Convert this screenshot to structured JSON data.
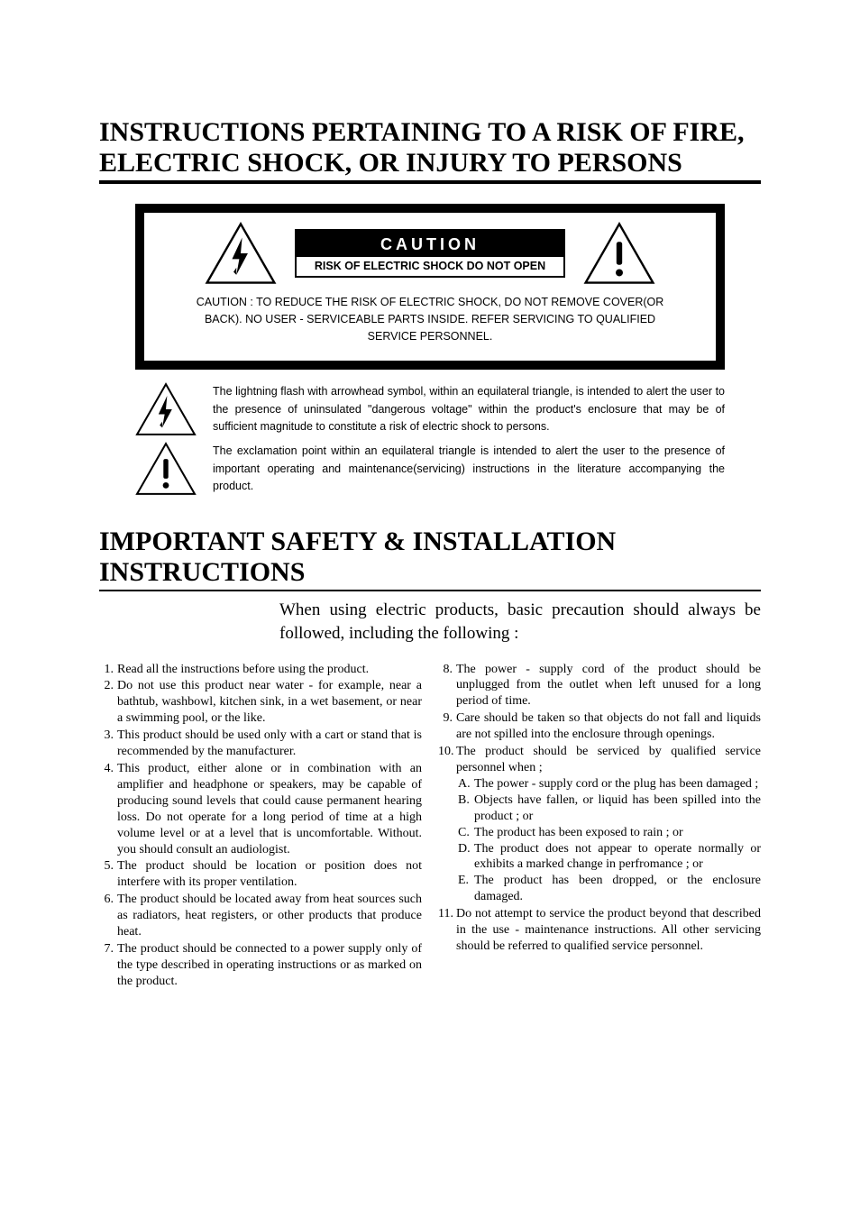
{
  "section1": {
    "title": "INSTRUCTIONS PERTAINING TO A RISK OF FIRE, ELECTRIC SHOCK, OR INJURY TO PERSONS",
    "caution_word": "CAUTION",
    "caution_sub": "RISK OF ELECTRIC SHOCK DO NOT OPEN",
    "caution_body": "CAUTION : TO REDUCE THE RISK OF ELECTRIC SHOCK, DO NOT REMOVE COVER(OR BACK). NO USER - SERVICEABLE PARTS INSIDE. REFER SERVICING TO QUALIFIED SERVICE PERSONNEL.",
    "explain_bolt": "The lightning flash with arrowhead symbol, within an equilateral triangle, is intended to alert the user to the presence of uninsulated \"dangerous voltage\" within the product's enclosure that may be of sufficient magnitude to constitute a risk of electric shock to persons.",
    "explain_excl": "The exclamation point within an equilateral triangle is intended to alert the user to the presence of important operating and maintenance(servicing) instructions in the literature accompanying the product."
  },
  "section2": {
    "title": "IMPORTANT SAFETY & INSTALLATION INSTRUCTIONS",
    "intro": "When using electric products, basic precaution should always be followed, including the following :",
    "left": [
      {
        "n": "1.",
        "t": "Read all the instructions before using the product."
      },
      {
        "n": "2.",
        "t": "Do not use this product near water - for example, near a bathtub, washbowl, kitchen sink, in a wet basement, or near a swimming pool, or the like."
      },
      {
        "n": "3.",
        "t": "This product should be used only with a cart or stand that is recommended by the manufacturer."
      },
      {
        "n": "4.",
        "t": "This product, either alone or in combination with an amplifier and headphone or speakers, may be capable of producing sound levels that could cause permanent hearing loss. Do not operate for a long period of time at a high volume level or at a level that is uncomfortable. Without. you should consult an audiologist."
      },
      {
        "n": "5.",
        "t": "The product should be location or position does not interfere with its proper ventilation."
      },
      {
        "n": "6.",
        "t": "The product should be located away from heat sources such as radiators, heat registers, or other products that produce heat."
      },
      {
        "n": "7.",
        "t": "The product should be connected to a power supply only of the type described in operating instructions or as marked on the product."
      }
    ],
    "right_top": [
      {
        "n": "8.",
        "t": "The power - supply cord of the product should be unplugged from the outlet when left unused for a long period of time."
      },
      {
        "n": "9.",
        "t": "Care should be taken so that objects do not fall and liquids are not spilled into the enclosure through openings."
      }
    ],
    "right_10": {
      "n": "10.",
      "t": "The product should be serviced by qualified service personnel when ;"
    },
    "right_10_sub": [
      {
        "l": "A.",
        "t": "The power - supply cord or the plug has been damaged ;"
      },
      {
        "l": "B.",
        "t": "Objects have fallen, or liquid has been spilled into the product ; or"
      },
      {
        "l": "C.",
        "t": "The product has been exposed to rain ; or"
      },
      {
        "l": "D.",
        "t": "The product does not appear to operate normally or exhibits a marked change in perfromance ; or"
      },
      {
        "l": "E.",
        "t": "The product has been dropped, or the enclosure damaged."
      }
    ],
    "right_11": {
      "n": "11.",
      "t": "Do not attempt to service the product beyond that described in the use - maintenance instructions. All other servicing should be referred to qualified service personnel."
    }
  }
}
